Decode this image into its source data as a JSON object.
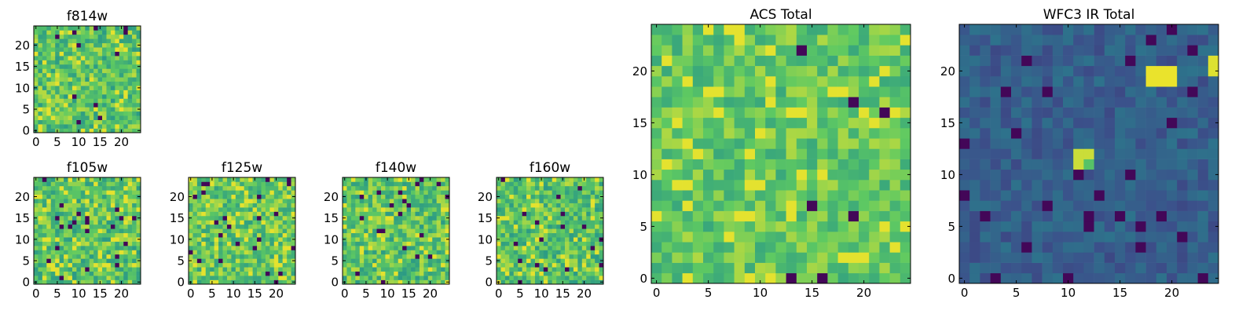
{
  "figure": {
    "background": "#ffffff"
  },
  "colormap": {
    "name": "viridis",
    "stops": [
      "#440154",
      "#3b528b",
      "#21918c",
      "#5ec962",
      "#fde725"
    ]
  },
  "chart_data": [
    {
      "type": "heatmap",
      "title": "f814w",
      "grid_size": 25,
      "xlim": [
        0,
        24
      ],
      "ylim": [
        0,
        24
      ],
      "x_ticks": [
        0,
        5,
        10,
        15,
        20
      ],
      "y_ticks": [
        0,
        5,
        10,
        15,
        20
      ],
      "value_range": [
        0,
        1
      ],
      "seed": 11,
      "base_level": 0.72,
      "spread": 0.18,
      "dark_fraction": 0.025,
      "bright_fraction": 0.06,
      "bright_patches": []
    },
    {
      "type": "heatmap",
      "title": "f105w",
      "grid_size": 25,
      "xlim": [
        0,
        24
      ],
      "ylim": [
        0,
        24
      ],
      "x_ticks": [
        0,
        5,
        10,
        15,
        20
      ],
      "y_ticks": [
        0,
        5,
        10,
        15,
        20
      ],
      "value_range": [
        0,
        1
      ],
      "seed": 23,
      "base_level": 0.72,
      "spread": 0.18,
      "dark_fraction": 0.03,
      "bright_fraction": 0.07,
      "bright_patches": []
    },
    {
      "type": "heatmap",
      "title": "f125w",
      "grid_size": 25,
      "xlim": [
        0,
        24
      ],
      "ylim": [
        0,
        24
      ],
      "x_ticks": [
        0,
        5,
        10,
        15,
        20
      ],
      "y_ticks": [
        0,
        5,
        10,
        15,
        20
      ],
      "value_range": [
        0,
        1
      ],
      "seed": 37,
      "base_level": 0.74,
      "spread": 0.18,
      "dark_fraction": 0.035,
      "bright_fraction": 0.08,
      "bright_patches": []
    },
    {
      "type": "heatmap",
      "title": "f140w",
      "grid_size": 25,
      "xlim": [
        0,
        24
      ],
      "ylim": [
        0,
        24
      ],
      "x_ticks": [
        0,
        5,
        10,
        15,
        20
      ],
      "y_ticks": [
        0,
        5,
        10,
        15,
        20
      ],
      "value_range": [
        0,
        1
      ],
      "seed": 41,
      "base_level": 0.72,
      "spread": 0.18,
      "dark_fraction": 0.03,
      "bright_fraction": 0.08,
      "bright_patches": []
    },
    {
      "type": "heatmap",
      "title": "f160w",
      "grid_size": 25,
      "xlim": [
        0,
        24
      ],
      "ylim": [
        0,
        24
      ],
      "x_ticks": [
        0,
        5,
        10,
        15,
        20
      ],
      "y_ticks": [
        0,
        5,
        10,
        15,
        20
      ],
      "value_range": [
        0,
        1
      ],
      "seed": 53,
      "base_level": 0.72,
      "spread": 0.18,
      "dark_fraction": 0.035,
      "bright_fraction": 0.08,
      "bright_patches": []
    },
    {
      "type": "heatmap",
      "title": "ACS Total",
      "grid_size": 25,
      "xlim": [
        0,
        24
      ],
      "ylim": [
        0,
        24
      ],
      "x_ticks": [
        0,
        5,
        10,
        15,
        20
      ],
      "y_ticks": [
        0,
        5,
        10,
        15,
        20
      ],
      "value_range": [
        0,
        1
      ],
      "seed": 67,
      "base_level": 0.74,
      "spread": 0.14,
      "dark_fraction": 0.012,
      "bright_fraction": 0.05,
      "bright_patches": []
    },
    {
      "type": "heatmap",
      "title": "WFC3 IR Total",
      "grid_size": 25,
      "xlim": [
        0,
        24
      ],
      "ylim": [
        0,
        24
      ],
      "x_ticks": [
        0,
        5,
        10,
        15,
        20
      ],
      "y_ticks": [
        0,
        5,
        10,
        15,
        20
      ],
      "value_range": [
        0,
        1
      ],
      "seed": 79,
      "base_level": 0.3,
      "spread": 0.08,
      "dark_fraction": 0.05,
      "bright_fraction": 0.0,
      "bright_patches": [
        {
          "x": 18,
          "y": 20,
          "value": 0.97
        },
        {
          "x": 19,
          "y": 20,
          "value": 0.97
        },
        {
          "x": 20,
          "y": 20,
          "value": 0.97
        },
        {
          "x": 18,
          "y": 19,
          "value": 0.97
        },
        {
          "x": 19,
          "y": 19,
          "value": 0.97
        },
        {
          "x": 20,
          "y": 19,
          "value": 0.97
        },
        {
          "x": 24,
          "y": 21,
          "value": 0.95
        },
        {
          "x": 24,
          "y": 20,
          "value": 0.95
        },
        {
          "x": 11,
          "y": 12,
          "value": 0.92
        },
        {
          "x": 12,
          "y": 12,
          "value": 0.92
        },
        {
          "x": 11,
          "y": 11,
          "value": 0.92
        },
        {
          "x": 12,
          "y": 11,
          "value": 0.72
        }
      ]
    }
  ]
}
